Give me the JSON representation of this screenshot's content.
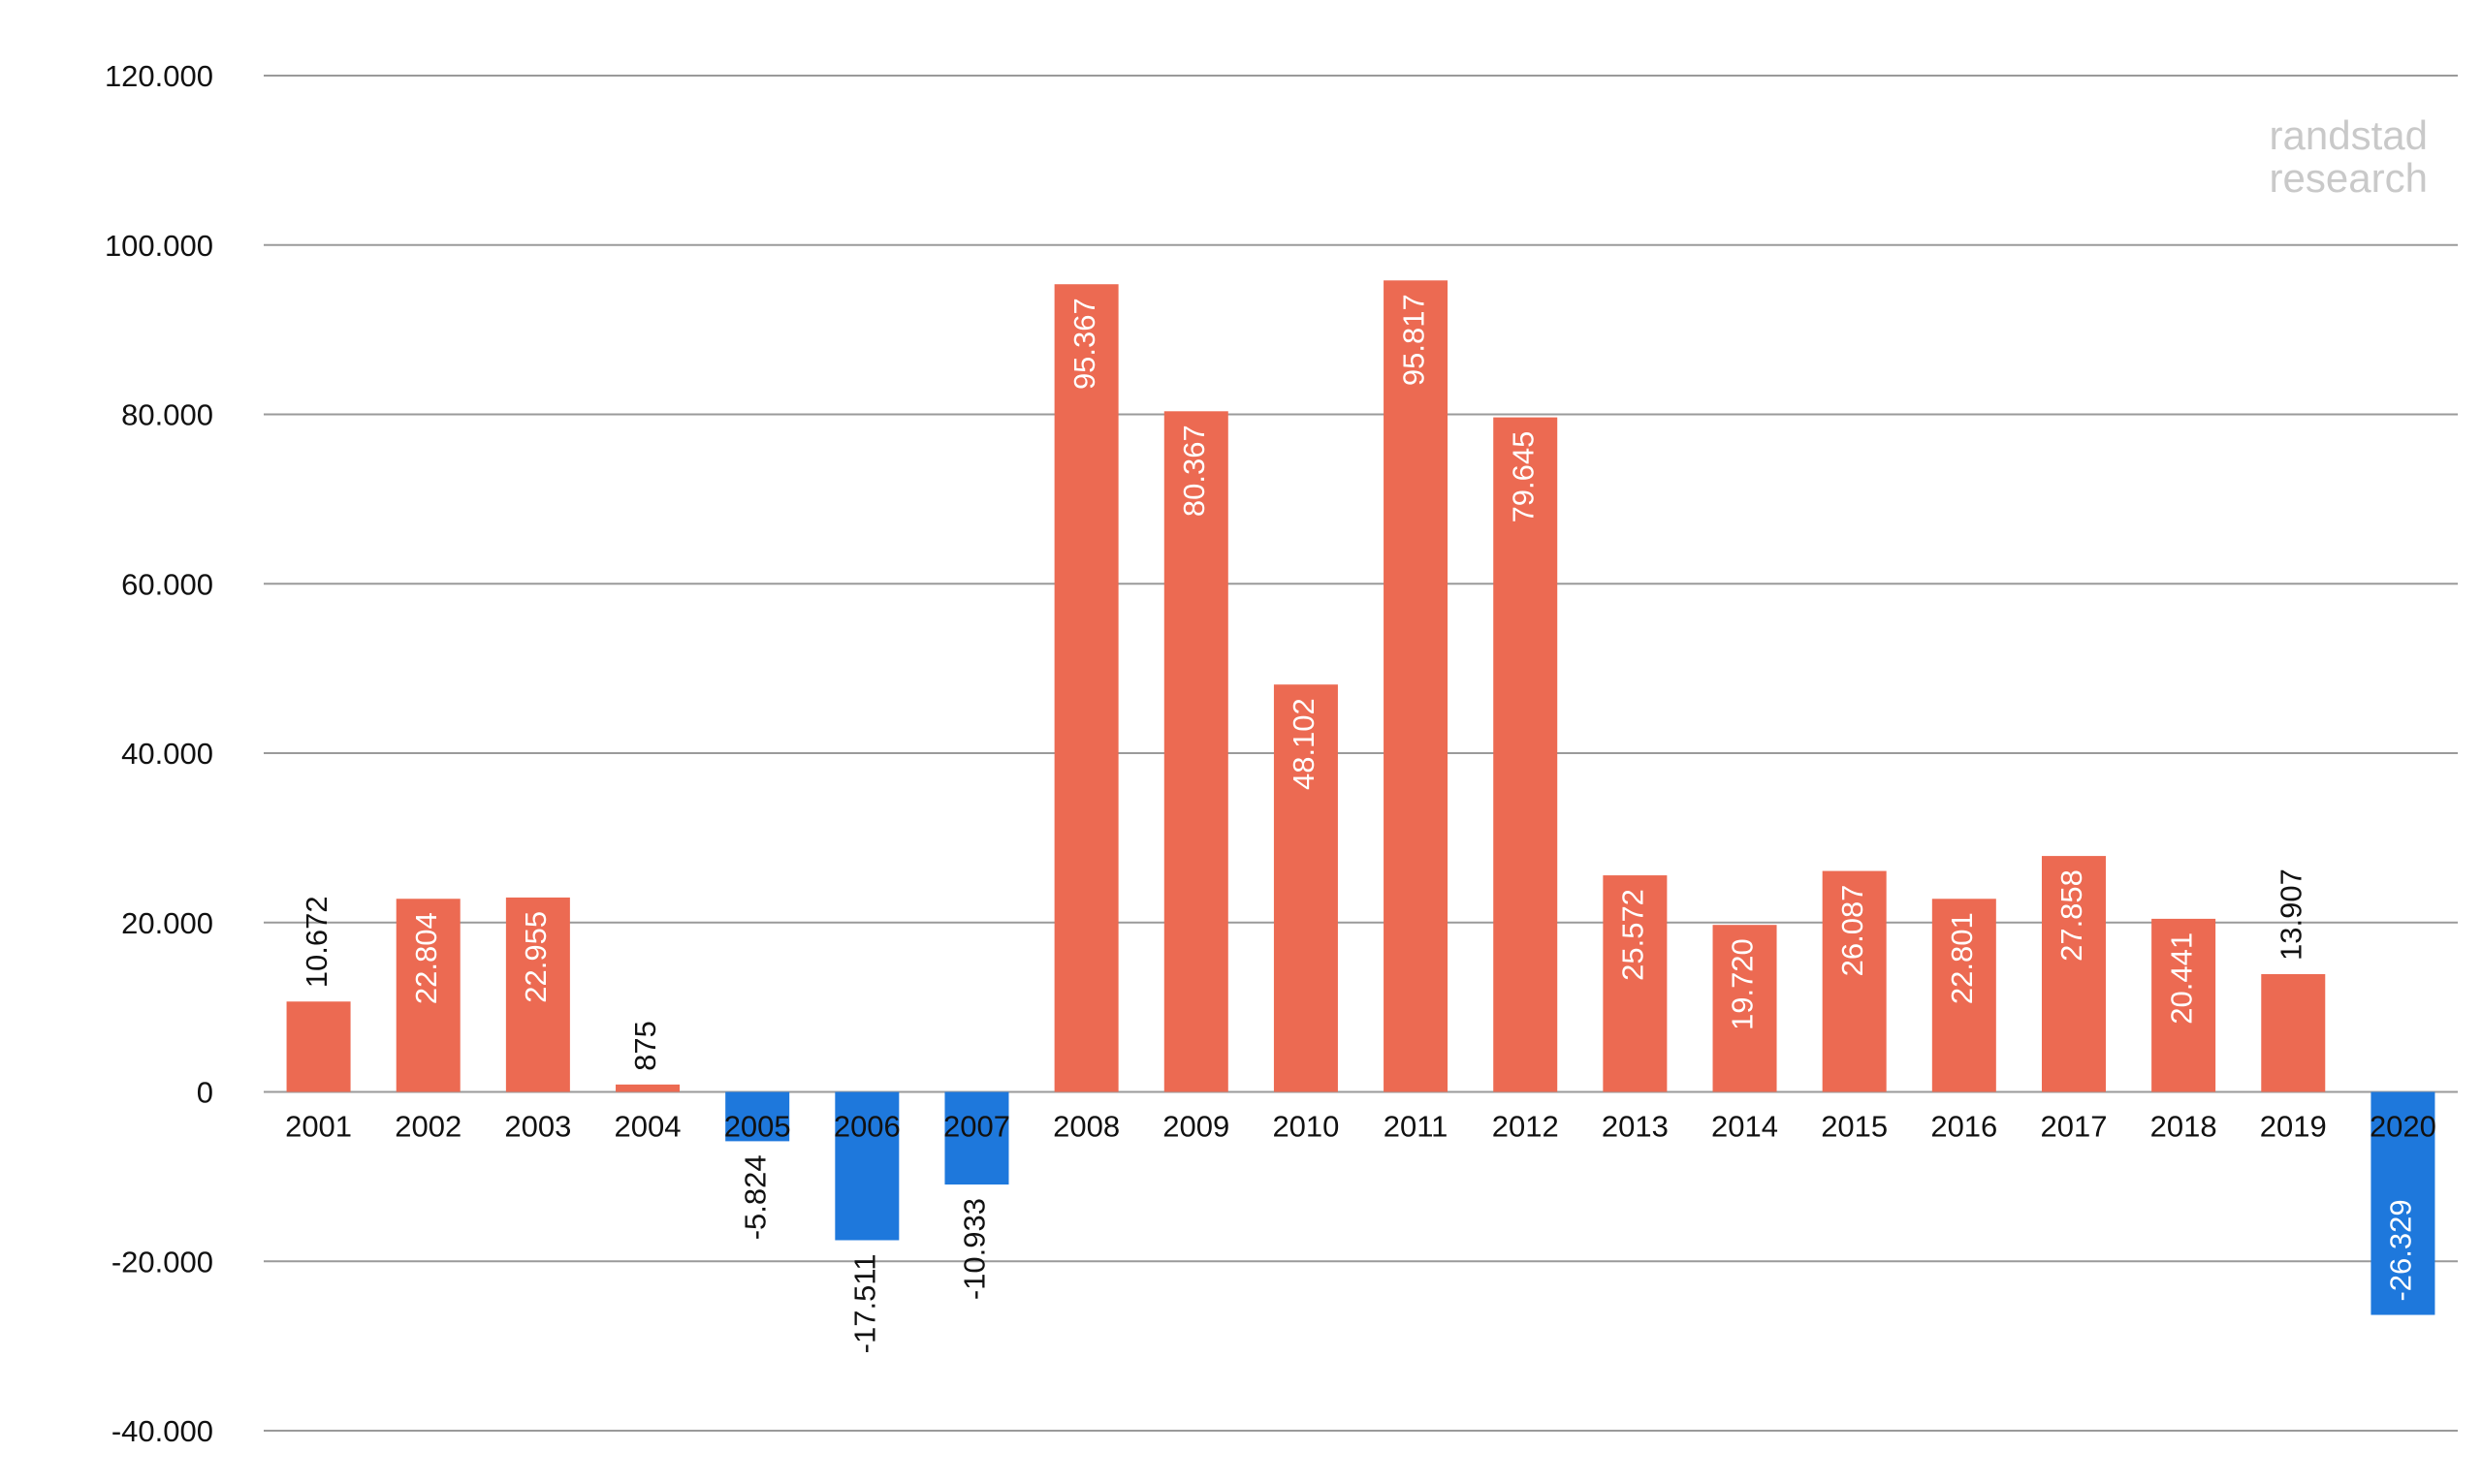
{
  "watermark": {
    "line1": "randstad",
    "line2": "research"
  },
  "colors": {
    "positive": "#EC6A52",
    "negative": "#1E78DC",
    "grid": "#9a9a9a",
    "text": "#111111"
  },
  "chart_data": {
    "type": "bar",
    "categories": [
      "2001",
      "2002",
      "2003",
      "2004",
      "2005",
      "2006",
      "2007",
      "2008",
      "2009",
      "2010",
      "2011",
      "2012",
      "2013",
      "2014",
      "2015",
      "2016",
      "2017",
      "2018",
      "2019",
      "2020"
    ],
    "values": [
      10672,
      22804,
      22955,
      875,
      -5824,
      -17511,
      -10933,
      95367,
      80367,
      48102,
      95817,
      79645,
      25572,
      19720,
      26087,
      22801,
      27858,
      20441,
      13907,
      -26329
    ],
    "data_labels": [
      "10.672",
      "22.804",
      "22.955",
      "875",
      "-5.824",
      "-17.511",
      "-10.933",
      "95.367",
      "80.367",
      "48.102",
      "95.817",
      "79.645",
      "25.572",
      "19.720",
      "26.087",
      "22.801",
      "27.858",
      "20.441",
      "13.907",
      "-26.329"
    ],
    "y_ticks": [
      -40000,
      -20000,
      0,
      20000,
      40000,
      60000,
      80000,
      100000,
      120000
    ],
    "y_tick_labels": [
      "-40.000",
      "-20.000",
      "0",
      "20.000",
      "40.000",
      "60.000",
      "80.000",
      "100.000",
      "120.000"
    ],
    "ylim": [
      -40000,
      120000
    ],
    "title": "",
    "xlabel": "",
    "ylabel": "",
    "grid": true,
    "legend": "none"
  }
}
